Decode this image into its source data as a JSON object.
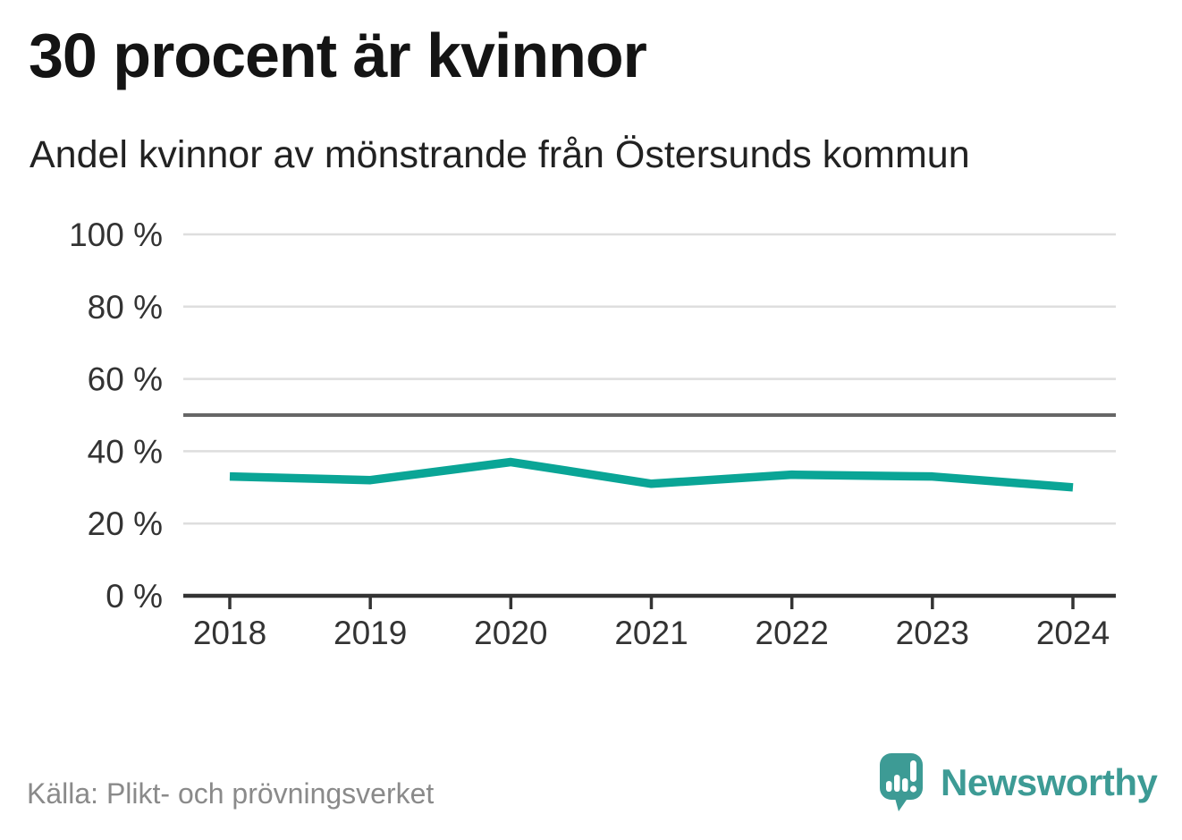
{
  "header": {
    "title": "30 procent är kvinnor",
    "subtitle": "Andel kvinnor av mönstrande från Östersunds kommun"
  },
  "chart_data": {
    "type": "line",
    "title": "30 procent är kvinnor",
    "subtitle": "Andel kvinnor av mönstrande från Östersunds kommun",
    "x": [
      "2018",
      "2019",
      "2020",
      "2021",
      "2022",
      "2023",
      "2024"
    ],
    "series": [
      {
        "name": "Andel kvinnor av mönstrande",
        "values": [
          33,
          32,
          37,
          31,
          33.5,
          33,
          30
        ]
      }
    ],
    "unit": "%",
    "ylim": [
      0,
      100
    ],
    "y_ticks": [
      0,
      20,
      40,
      60,
      80,
      100
    ],
    "y_tick_labels": [
      "0 %",
      "20 %",
      "40 %",
      "60 %",
      "80 %",
      "100 %"
    ],
    "reference_line": 50,
    "grid": true,
    "legend": "none",
    "line_color": "#0aa596",
    "reference_line_color": "#666666",
    "gridline_color": "#dedede",
    "axis_color": "#333333"
  },
  "footer": {
    "source": "Källa: Plikt- och prövningsverket",
    "brand": "Newsworthy",
    "brand_color": "#3d9b95"
  }
}
